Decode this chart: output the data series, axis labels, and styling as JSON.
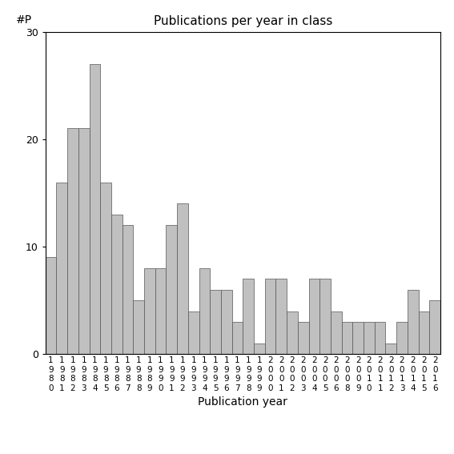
{
  "title": "Publications per year in class",
  "xlabel": "Publication year",
  "ylabel": "#P",
  "years": [
    1980,
    1981,
    1982,
    1983,
    1984,
    1985,
    1986,
    1987,
    1988,
    1989,
    1990,
    1991,
    1992,
    1993,
    1994,
    1995,
    1996,
    1997,
    1998,
    1999,
    2000,
    2001,
    2002,
    2003,
    2004,
    2005,
    2006,
    2008,
    2009,
    2010,
    2011,
    2012,
    2013,
    2014,
    2015,
    2016
  ],
  "values": [
    9,
    16,
    21,
    21,
    27,
    16,
    13,
    12,
    5,
    8,
    8,
    12,
    14,
    4,
    8,
    6,
    6,
    3,
    7,
    1,
    7,
    7,
    4,
    3,
    7,
    7,
    4,
    3,
    3,
    3,
    3,
    1,
    3,
    6,
    4,
    5
  ],
  "bar_color": "#c0c0c0",
  "bar_edgecolor": "#555555",
  "ylim": [
    0,
    30
  ],
  "yticks": [
    0,
    10,
    20,
    30
  ],
  "figsize": [
    5.67,
    5.67
  ],
  "dpi": 100
}
